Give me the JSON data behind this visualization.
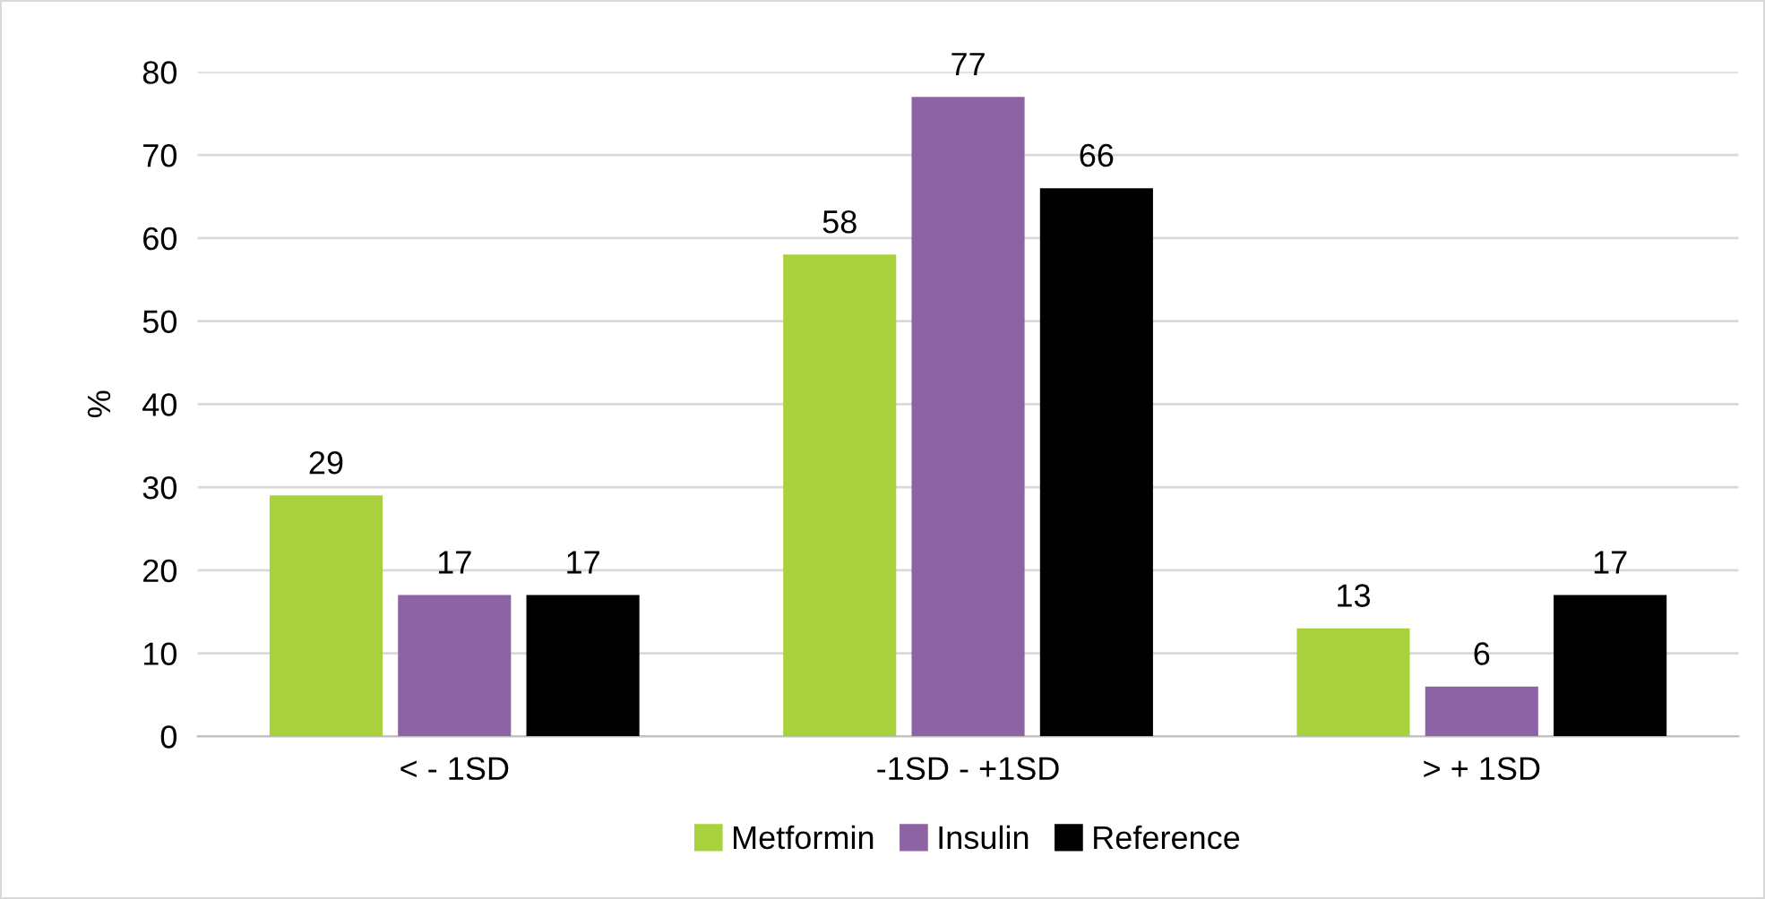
{
  "chart_data": {
    "type": "bar",
    "ylabel": "%",
    "categories": [
      "< - 1SD",
      "-1SD - +1SD",
      "> + 1SD"
    ],
    "series": [
      {
        "name": "Metformin",
        "color": "#a9d13d",
        "values": [
          29,
          58,
          13
        ]
      },
      {
        "name": "Insulin",
        "color": "#8e63a4",
        "values": [
          17,
          77,
          6
        ]
      },
      {
        "name": "Reference",
        "color": "#000000",
        "values": [
          17,
          66,
          17
        ]
      }
    ],
    "ylim": [
      0,
      80
    ],
    "yticks": [
      0,
      10,
      20,
      30,
      40,
      50,
      60,
      70,
      80
    ],
    "grid": "y",
    "legend": "bottom",
    "data_labels": true
  }
}
